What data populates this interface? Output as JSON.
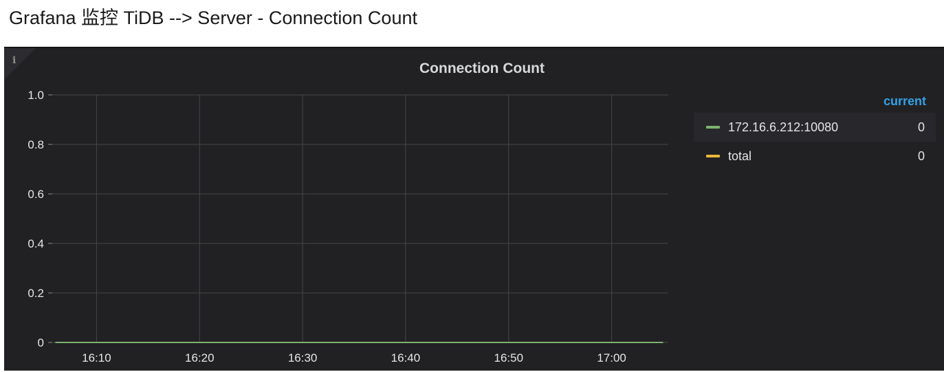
{
  "caption": "Grafana 监控 TiDB --> Server - Connection Count",
  "panel": {
    "title": "Connection Count",
    "info_icon": "info-icon",
    "background": "#212124"
  },
  "legend": {
    "header": "current",
    "header_color": "#33a2e5",
    "items": [
      {
        "name": "172.16.6.212:10080",
        "value": "0",
        "color": "#7eb26d"
      },
      {
        "name": "total",
        "value": "0",
        "color": "#eab839"
      }
    ]
  },
  "chart_data": {
    "type": "line",
    "title": "Connection Count",
    "xlabel": "",
    "ylabel": "",
    "x_ticks": [
      "16:10",
      "16:20",
      "16:30",
      "16:40",
      "16:50",
      "17:00"
    ],
    "y_ticks": [
      "0",
      "0.2",
      "0.4",
      "0.6",
      "0.8",
      "1.0"
    ],
    "ylim": [
      0,
      1.0
    ],
    "xlim_minutes_from_1610": [
      -4.3,
      55.5
    ],
    "grid": true,
    "legend_position": "right",
    "series": [
      {
        "name": "172.16.6.212:10080",
        "color": "#7eb26d",
        "x": [
          "16:06",
          "17:05"
        ],
        "y": [
          0,
          0
        ]
      },
      {
        "name": "total",
        "color": "#eab839",
        "x": [
          "16:06",
          "17:05"
        ],
        "y": [
          0,
          0
        ]
      }
    ]
  }
}
